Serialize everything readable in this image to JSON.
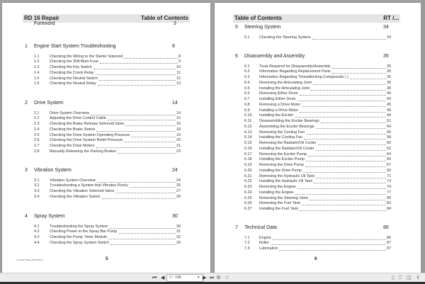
{
  "viewer": {
    "page_input": "5 / 108",
    "icons": [
      "first-page-icon",
      "prev-page-icon",
      "next-page-icon",
      "last-page-icon",
      "copy-icon",
      "paste-icon",
      "single-page-icon",
      "bookmark-icon",
      "two-page-icon",
      "fit-icon"
    ]
  },
  "left_page": {
    "header_left": "RD 16 Repair",
    "header_right": "Table of Contents",
    "foreword": {
      "title": "Foreword",
      "page": "3"
    },
    "sections": [
      {
        "num": "1",
        "title": "Engine Start System Troubleshooting",
        "page": "8",
        "entries": [
          {
            "num": "1.1",
            "title": "Checking the Wiring to the Starter Solenoid",
            "page": "8"
          },
          {
            "num": "1.2",
            "title": "Checking the 30A Main Fuse",
            "page": "9"
          },
          {
            "num": "1.3",
            "title": "Checking the Key Switch",
            "page": "10"
          },
          {
            "num": "1.4",
            "title": "Checking the Crank Relay",
            "page": "11"
          },
          {
            "num": "1.5",
            "title": "Checking the Neutral Switch",
            "page": "12"
          },
          {
            "num": "1.6",
            "title": "Checking the Neutral Relay",
            "page": "13"
          }
        ]
      },
      {
        "num": "2",
        "title": "Drive System",
        "page": "14",
        "entries": [
          {
            "num": "2.1",
            "title": "Drive System Overview",
            "page": "14"
          },
          {
            "num": "2.2",
            "title": "Adjusting the Drive Control Cable",
            "page": "15"
          },
          {
            "num": "2.3",
            "title": "Checking the Brake Release Solenoid Valve",
            "page": "16"
          },
          {
            "num": "2.4",
            "title": "Checking the Brake Switch",
            "page": "18"
          },
          {
            "num": "2.5",
            "title": "Checking the Drive System Operating Pressure",
            "page": "19"
          },
          {
            "num": "2.6",
            "title": "Checking the Drive System Relief Pressure",
            "page": "20"
          },
          {
            "num": "2.7",
            "title": "Checking the Drive Motors",
            "page": "21"
          },
          {
            "num": "2.8",
            "title": "Manually Releasing the Parking Brakes",
            "page": "23"
          }
        ]
      },
      {
        "num": "3",
        "title": "Vibration System",
        "page": "24",
        "entries": [
          {
            "num": "3.1",
            "title": "Vibration System Overview",
            "page": "24"
          },
          {
            "num": "3.2",
            "title": "Troubleshooting a System that Vibrates Poorly",
            "page": "25"
          },
          {
            "num": "3.3",
            "title": "Checking the Vibration Solenoid Valve",
            "page": "27"
          },
          {
            "num": "3.4",
            "title": "Checking the Vibration Switch",
            "page": "29"
          }
        ]
      },
      {
        "num": "4",
        "title": "Spray System",
        "page": "30",
        "entries": [
          {
            "num": "4.1",
            "title": "Troubleshooting the Spray System",
            "page": "30"
          },
          {
            "num": "4.2",
            "title": "Checking Power to the Spray Bar Pump",
            "page": "31"
          },
          {
            "num": "4.3",
            "title": "Checking the Pump Timer Module",
            "page": "32"
          },
          {
            "num": "4.4",
            "title": "Checking the Spray System Switch",
            "page": "33"
          }
        ]
      }
    ],
    "footer_file": "rw_an07YTAlre_00YTOC.fm",
    "page_number": "5"
  },
  "right_page": {
    "header_left": "Table of Contents",
    "header_right": "RT /...",
    "sections": [
      {
        "num": "5",
        "title": "Steering System",
        "page": "34",
        "entries": [
          {
            "num": "5.1",
            "title": "Checking the Steering System",
            "page": "34"
          }
        ]
      },
      {
        "num": "6",
        "title": "Disassembly and Assembly",
        "page": "35",
        "entries": [
          {
            "num": "6.1",
            "title": "Tools Required for Disassembly/Assembly",
            "page": "35"
          },
          {
            "num": "6.2",
            "title": "Information Regarding Replacement Parts",
            "page": "35"
          },
          {
            "num": "6.3",
            "title": "Information Regarding Threadlocking Compounds ( )",
            "page": "35"
          },
          {
            "num": "6.4",
            "title": "Removing the Articulating Joint",
            "page": "36"
          },
          {
            "num": "6.5",
            "title": "Installing the Articulating Joint",
            "page": "38"
          },
          {
            "num": "6.6",
            "title": "Removing Either Drum",
            "page": "40"
          },
          {
            "num": "6.7",
            "title": "Installing Either Drum",
            "page": "43"
          },
          {
            "num": "6.8",
            "title": "Removing a Drive Motor",
            "page": "45"
          },
          {
            "num": "6.9",
            "title": "Installing a Drive Motor",
            "page": "46"
          },
          {
            "num": "6.10",
            "title": "Installing the Exciter",
            "page": "49"
          },
          {
            "num": "6.11",
            "title": "Disassembling the Exciter Bearings",
            "page": "51"
          },
          {
            "num": "6.12",
            "title": "Assembling the Exciter Bearings",
            "page": "54"
          },
          {
            "num": "6.13",
            "title": "Removing the Cooling Fan",
            "page": "56"
          },
          {
            "num": "6.14",
            "title": "Installing the Cooling Fan",
            "page": "58"
          },
          {
            "num": "6.15",
            "title": "Removing the Radiator/Oil Cooler",
            "page": "60"
          },
          {
            "num": "6.16",
            "title": "Installing the Radiator/Oil Cooler",
            "page": "62"
          },
          {
            "num": "6.17",
            "title": "Removing the Exciter Pump",
            "page": "64"
          },
          {
            "num": "6.18",
            "title": "Installing the Exciter Pump",
            "page": "66"
          },
          {
            "num": "6.19",
            "title": "Removing the Drive Pump",
            "page": "67"
          },
          {
            "num": "6.20",
            "title": "Installing the Drive Pump",
            "page": "69"
          },
          {
            "num": "6.21",
            "title": "Removing the Hydraulic Oil Tank",
            "page": "71"
          },
          {
            "num": "6.22",
            "title": "Installing the Hydraulic Oil Tank",
            "page": "73"
          },
          {
            "num": "6.23",
            "title": "Removing the Engine",
            "page": "74"
          },
          {
            "num": "6.24",
            "title": "Installing the Engine",
            "page": "77"
          },
          {
            "num": "6.25",
            "title": "Removing the Steering Valve",
            "page": "80"
          },
          {
            "num": "6.26",
            "title": "Removing the Fuel Tank",
            "page": "82"
          },
          {
            "num": "6.27",
            "title": "Installing the Fuel Tank",
            "page": "84"
          }
        ]
      },
      {
        "num": "7",
        "title": "Technical Data",
        "page": "86",
        "entries": [
          {
            "num": "7.1",
            "title": "Engine",
            "page": "86"
          },
          {
            "num": "7.2",
            "title": "Roller",
            "page": "87"
          },
          {
            "num": "7.3",
            "title": "Lubrication",
            "page": "87"
          }
        ]
      }
    ],
    "page_number": "6"
  }
}
